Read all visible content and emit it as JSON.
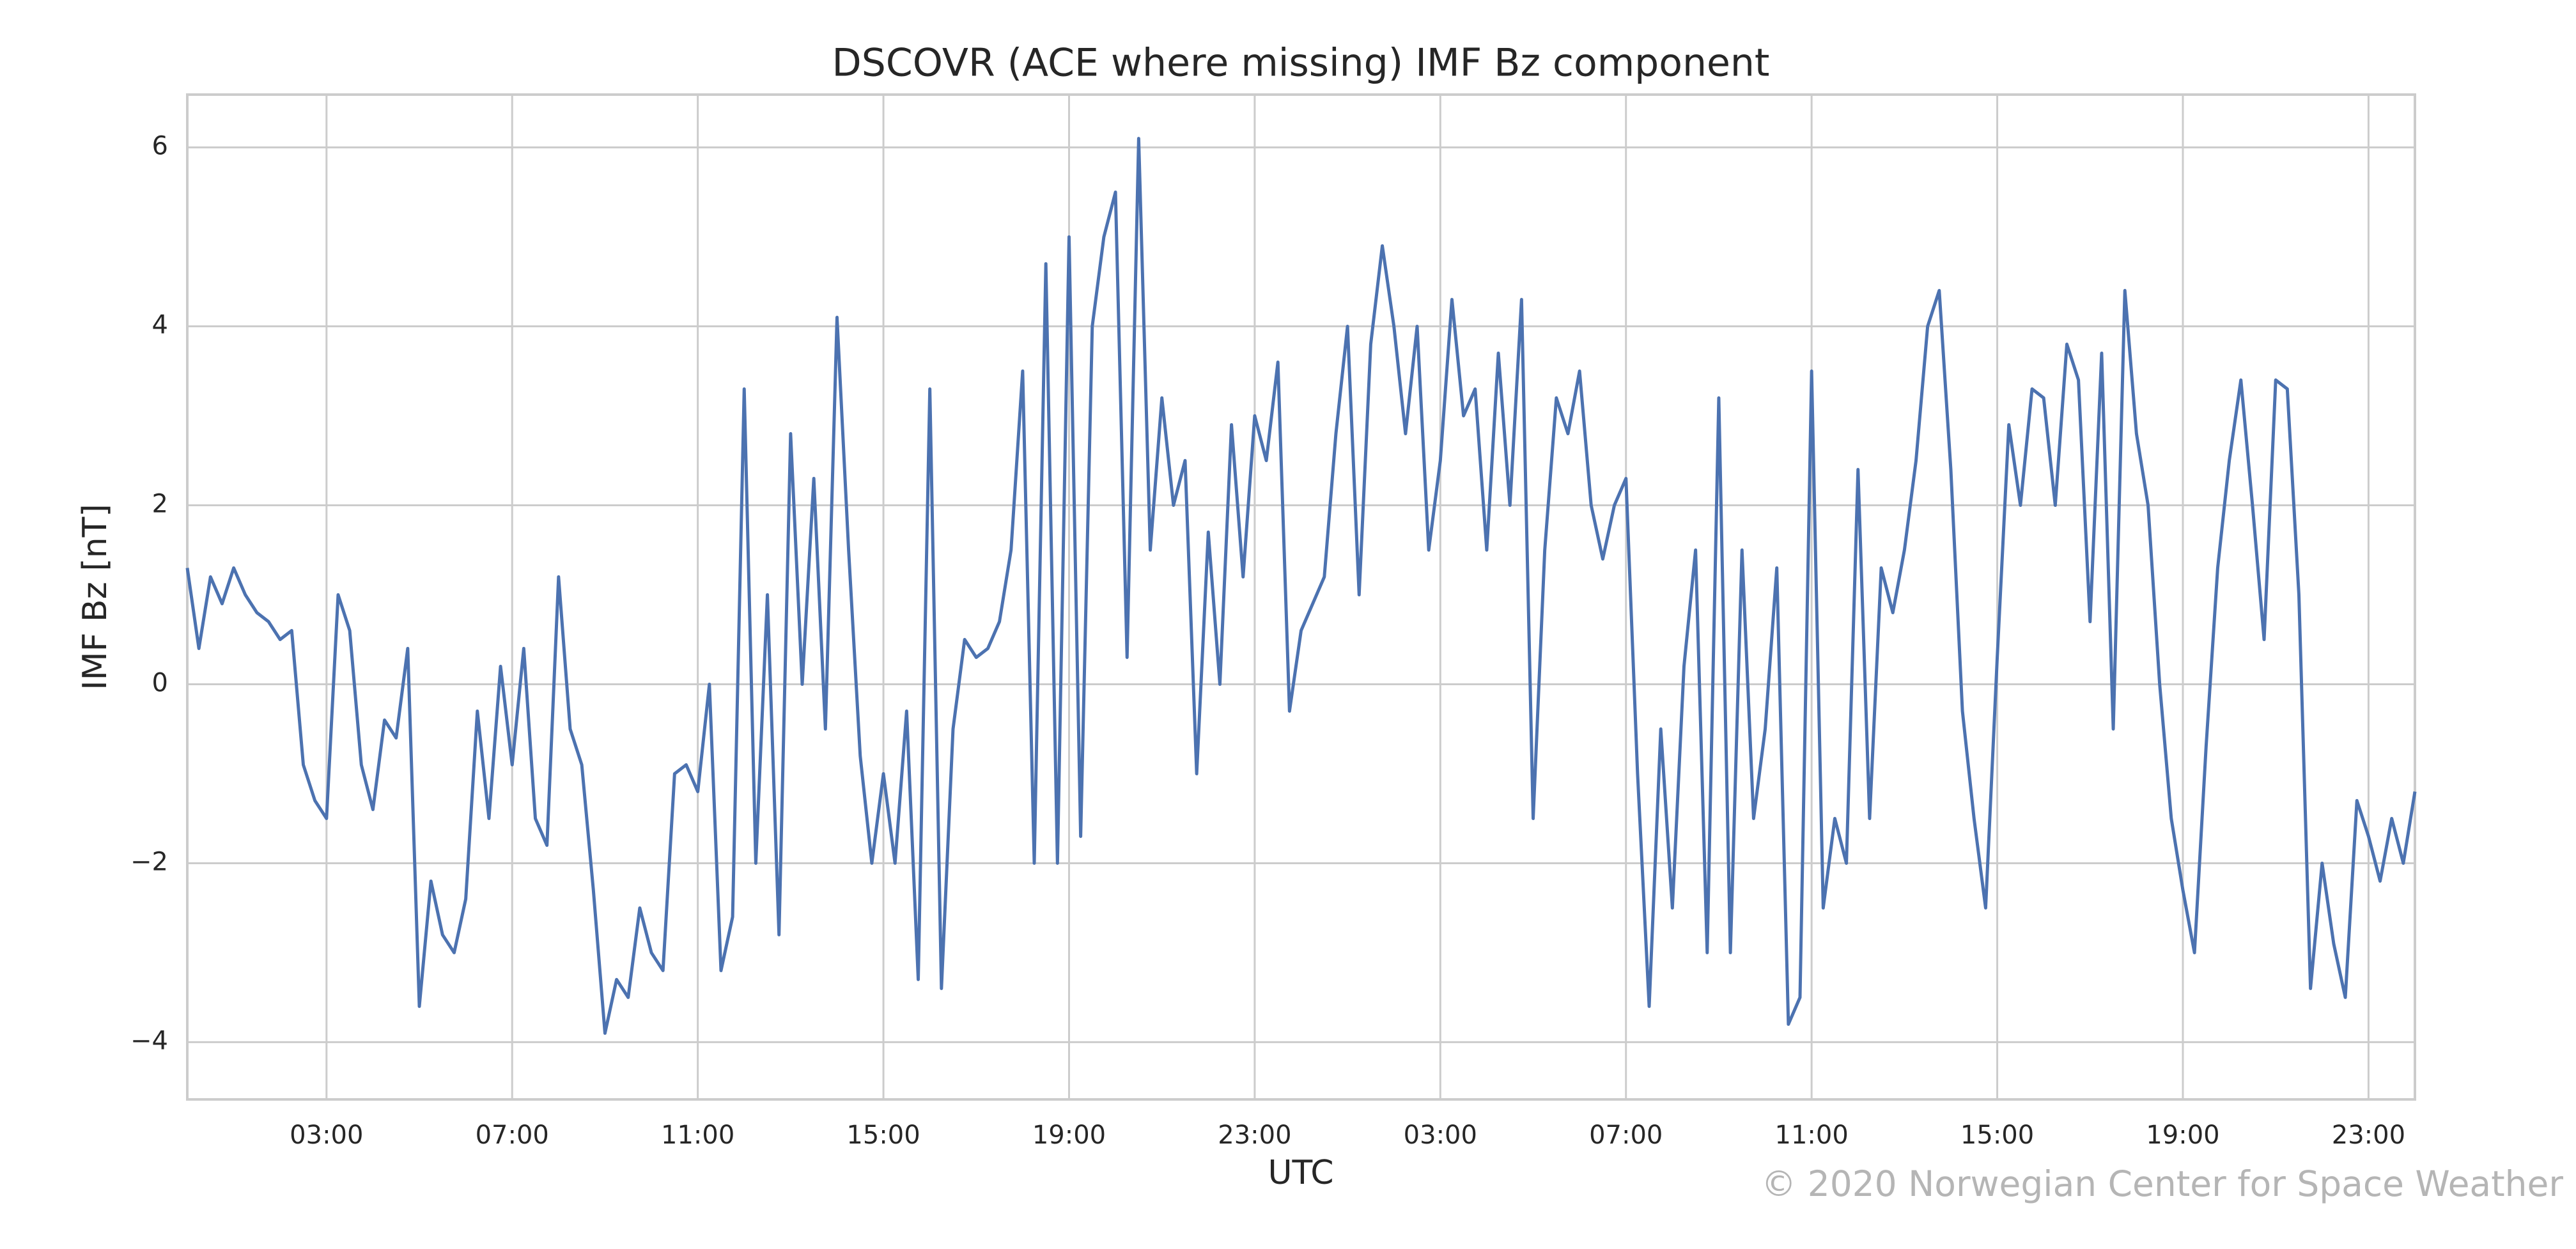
{
  "chart_data": {
    "type": "line",
    "title": "DSCOVR (ACE where missing) IMF Bz component",
    "xlabel": "UTC",
    "ylabel": "IMF Bz [nT]",
    "credit": "© 2020 Norwegian Center for Space Weather",
    "grid": true,
    "xlim": [
      0,
      48
    ],
    "xticks": [
      {
        "value": 3,
        "label": "03:00"
      },
      {
        "value": 7,
        "label": "07:00"
      },
      {
        "value": 11,
        "label": "11:00"
      },
      {
        "value": 15,
        "label": "15:00"
      },
      {
        "value": 19,
        "label": "19:00"
      },
      {
        "value": 23,
        "label": "23:00"
      },
      {
        "value": 27,
        "label": "03:00"
      },
      {
        "value": 31,
        "label": "07:00"
      },
      {
        "value": 35,
        "label": "11:00"
      },
      {
        "value": 39,
        "label": "15:00"
      },
      {
        "value": 43,
        "label": "19:00"
      },
      {
        "value": 47,
        "label": "23:00"
      }
    ],
    "ylim": [
      -4.64,
      6.59
    ],
    "yticks": [
      {
        "value": -4,
        "label": "−4"
      },
      {
        "value": -2,
        "label": "−2"
      },
      0,
      2,
      4,
      6
    ],
    "x": [
      0,
      0.25,
      0.5,
      0.75,
      1,
      1.25,
      1.5,
      1.75,
      2,
      2.25,
      2.5,
      2.75,
      3,
      3.25,
      3.5,
      3.75,
      4,
      4.25,
      4.5,
      4.75,
      5,
      5.25,
      5.5,
      5.75,
      6,
      6.25,
      6.5,
      6.75,
      7,
      7.25,
      7.5,
      7.75,
      8,
      8.25,
      8.5,
      8.75,
      9,
      9.25,
      9.5,
      9.75,
      10,
      10.25,
      10.5,
      10.75,
      11,
      11.25,
      11.5,
      11.75,
      12,
      12.25,
      12.5,
      12.75,
      13,
      13.25,
      13.5,
      13.75,
      14,
      14.25,
      14.5,
      14.75,
      15,
      15.25,
      15.5,
      15.75,
      16,
      16.25,
      16.5,
      16.75,
      17,
      17.25,
      17.5,
      17.75,
      18,
      18.25,
      18.5,
      18.75,
      19,
      19.25,
      19.5,
      19.75,
      20,
      20.25,
      20.5,
      20.75,
      21,
      21.25,
      21.5,
      21.75,
      22,
      22.25,
      22.5,
      22.75,
      23,
      23.25,
      23.5,
      23.75,
      24,
      24.25,
      24.5,
      24.75,
      25,
      25.25,
      25.5,
      25.75,
      26,
      26.25,
      26.5,
      26.75,
      27,
      27.25,
      27.5,
      27.75,
      28,
      28.25,
      28.5,
      28.75,
      29,
      29.25,
      29.5,
      29.75,
      30,
      30.25,
      30.5,
      30.75,
      31,
      31.25,
      31.5,
      31.75,
      32,
      32.25,
      32.5,
      32.75,
      33,
      33.25,
      33.5,
      33.75,
      34,
      34.25,
      34.5,
      34.75,
      35,
      35.25,
      35.5,
      35.75,
      36,
      36.25,
      36.5,
      36.75,
      37,
      37.25,
      37.5,
      37.75,
      38,
      38.25,
      38.5,
      38.75,
      39,
      39.25,
      39.5,
      39.75,
      40,
      40.25,
      40.5,
      40.75,
      41,
      41.25,
      41.5,
      41.75,
      42,
      42.25,
      42.5,
      42.75,
      43,
      43.25,
      43.5,
      43.75,
      44,
      44.25,
      44.5,
      44.75,
      45,
      45.25,
      45.5,
      45.75,
      46,
      46.25,
      46.5,
      46.75,
      47,
      47.25,
      47.5,
      47.75,
      48
    ],
    "series": [
      {
        "color": "#4c72b0",
        "values": [
          1.3,
          0.4,
          1.2,
          0.9,
          1.3,
          1.0,
          0.8,
          0.7,
          0.5,
          0.6,
          -0.9,
          -1.3,
          -1.5,
          1.0,
          0.6,
          -0.9,
          -1.4,
          -0.4,
          -0.6,
          0.4,
          -3.6,
          -2.2,
          -2.8,
          -3.0,
          -2.4,
          -0.3,
          -1.5,
          0.2,
          -0.9,
          0.4,
          -1.5,
          -1.8,
          1.2,
          -0.5,
          -0.9,
          -2.3,
          -3.9,
          -3.3,
          -3.5,
          -2.5,
          -3.0,
          -3.2,
          -1.0,
          -0.9,
          -1.2,
          0.0,
          -3.2,
          -2.6,
          3.3,
          -2.0,
          1.0,
          -2.8,
          2.8,
          0.0,
          2.3,
          -0.5,
          4.1,
          1.5,
          -0.8,
          -2.0,
          -1.0,
          -2.0,
          -0.3,
          -3.3,
          3.3,
          -3.4,
          -0.5,
          0.5,
          0.3,
          0.4,
          0.7,
          1.5,
          3.5,
          -2.0,
          4.7,
          -2.0,
          5.0,
          -1.7,
          4.0,
          5.0,
          5.5,
          0.3,
          6.1,
          1.5,
          3.2,
          2.0,
          2.5,
          -1.0,
          1.7,
          0.0,
          2.9,
          1.2,
          3.0,
          2.5,
          3.6,
          -0.3,
          0.6,
          0.9,
          1.2,
          2.8,
          4.0,
          1.0,
          3.8,
          4.9,
          4.0,
          2.8,
          4.0,
          1.5,
          2.5,
          4.3,
          3.0,
          3.3,
          1.5,
          3.7,
          2.0,
          4.3,
          -1.5,
          1.5,
          3.2,
          2.8,
          3.5,
          2.0,
          1.4,
          2.0,
          2.3,
          -1.0,
          -3.6,
          -0.5,
          -2.5,
          0.2,
          1.5,
          -3.0,
          3.2,
          -3.0,
          1.5,
          -1.5,
          -0.5,
          1.3,
          -3.8,
          -3.5,
          3.5,
          -2.5,
          -1.5,
          -2.0,
          2.4,
          -1.5,
          1.3,
          0.8,
          1.5,
          2.5,
          4.0,
          4.4,
          2.4,
          -0.3,
          -1.5,
          -2.5,
          0.3,
          2.9,
          2.0,
          3.3,
          3.2,
          2.0,
          3.8,
          3.4,
          0.7,
          3.7,
          -0.5,
          4.4,
          2.8,
          2.0,
          0.0,
          -1.5,
          -2.3,
          -3.0,
          -0.7,
          1.3,
          2.5,
          3.4,
          2.0,
          0.5,
          3.4,
          3.3,
          1.0,
          -3.4,
          -2.0,
          -2.9,
          -3.5,
          -1.3,
          -1.7,
          -2.2,
          -1.5,
          -2.0,
          -1.2
        ]
      }
    ]
  }
}
